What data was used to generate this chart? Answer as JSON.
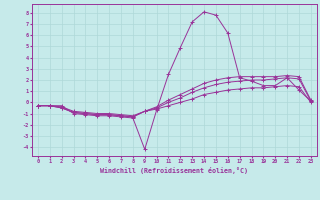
{
  "xlabel": "Windchill (Refroidissement éolien,°C)",
  "background_color": "#c6eaea",
  "grid_color": "#afd8d8",
  "line_color": "#993399",
  "xlim": [
    -0.5,
    23.5
  ],
  "ylim": [
    -4.8,
    8.8
  ],
  "xticks": [
    0,
    1,
    2,
    3,
    4,
    5,
    6,
    7,
    8,
    9,
    10,
    11,
    12,
    13,
    14,
    15,
    16,
    17,
    18,
    19,
    20,
    21,
    22,
    23
  ],
  "yticks": [
    -4,
    -3,
    -2,
    -1,
    0,
    1,
    2,
    3,
    4,
    5,
    6,
    7,
    8
  ],
  "series": [
    {
      "x": [
        0,
        1,
        2,
        3,
        4,
        5,
        6,
        7,
        8,
        9,
        10,
        11,
        12,
        13,
        14,
        15,
        16,
        17,
        18,
        19,
        20,
        21,
        22,
        23
      ],
      "y": [
        -0.3,
        -0.3,
        -0.3,
        -1.0,
        -1.1,
        -1.2,
        -1.2,
        -1.3,
        -1.4,
        -4.2,
        -0.7,
        2.5,
        4.9,
        7.2,
        8.1,
        7.8,
        6.2,
        2.2,
        1.9,
        1.5,
        1.5,
        2.2,
        1.1,
        0.1
      ]
    },
    {
      "x": [
        0,
        1,
        2,
        3,
        4,
        5,
        6,
        7,
        8,
        9,
        10,
        11,
        12,
        13,
        14,
        15,
        16,
        17,
        18,
        19,
        20,
        21,
        22,
        23
      ],
      "y": [
        -0.3,
        -0.3,
        -0.4,
        -0.8,
        -0.9,
        -1.0,
        -1.0,
        -1.1,
        -1.2,
        -0.8,
        -0.4,
        0.2,
        0.7,
        1.2,
        1.7,
        2.0,
        2.2,
        2.3,
        2.3,
        2.3,
        2.3,
        2.4,
        2.3,
        0.2
      ]
    },
    {
      "x": [
        0,
        1,
        2,
        3,
        4,
        5,
        6,
        7,
        8,
        9,
        10,
        11,
        12,
        13,
        14,
        15,
        16,
        17,
        18,
        19,
        20,
        21,
        22,
        23
      ],
      "y": [
        -0.3,
        -0.3,
        -0.5,
        -0.9,
        -1.0,
        -1.1,
        -1.1,
        -1.2,
        -1.3,
        -0.8,
        -0.5,
        0.0,
        0.4,
        0.9,
        1.3,
        1.6,
        1.8,
        1.9,
        2.0,
        2.0,
        2.1,
        2.2,
        2.1,
        0.1
      ]
    },
    {
      "x": [
        0,
        1,
        2,
        3,
        4,
        5,
        6,
        7,
        8,
        9,
        10,
        11,
        12,
        13,
        14,
        15,
        16,
        17,
        18,
        19,
        20,
        21,
        22,
        23
      ],
      "y": [
        -0.3,
        -0.3,
        -0.5,
        -0.9,
        -1.0,
        -1.1,
        -1.1,
        -1.2,
        -1.3,
        -0.8,
        -0.6,
        -0.3,
        0.0,
        0.3,
        0.7,
        0.9,
        1.1,
        1.2,
        1.3,
        1.3,
        1.4,
        1.5,
        1.4,
        0.0
      ]
    }
  ]
}
